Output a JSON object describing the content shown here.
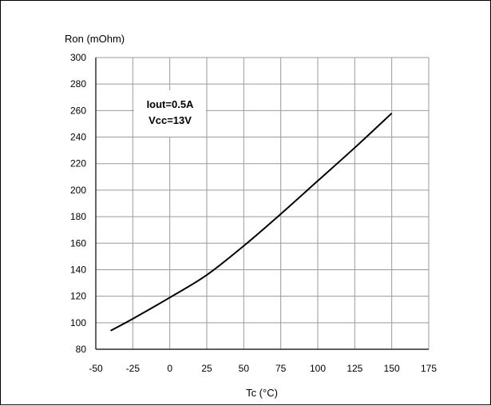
{
  "chart_data": {
    "type": "line",
    "xlabel": "Tc (°C)",
    "ylabel": "Ron (mOhm)",
    "xlim": [
      -50,
      175
    ],
    "ylim": [
      80,
      300
    ],
    "x_ticks": [
      -50,
      -25,
      0,
      25,
      50,
      75,
      100,
      125,
      150,
      175
    ],
    "y_ticks": [
      80,
      100,
      120,
      140,
      160,
      180,
      200,
      220,
      240,
      260,
      280,
      300
    ],
    "grid": true,
    "annotation": [
      "Iout=0.5A",
      "Vcc=13V"
    ],
    "series": [
      {
        "x": [
          -40,
          -25,
          0,
          25,
          50,
          75,
          100,
          125,
          150
        ],
        "y": [
          94,
          103,
          119,
          136,
          158,
          182,
          207,
          232,
          258
        ],
        "color": "#000000"
      }
    ]
  }
}
